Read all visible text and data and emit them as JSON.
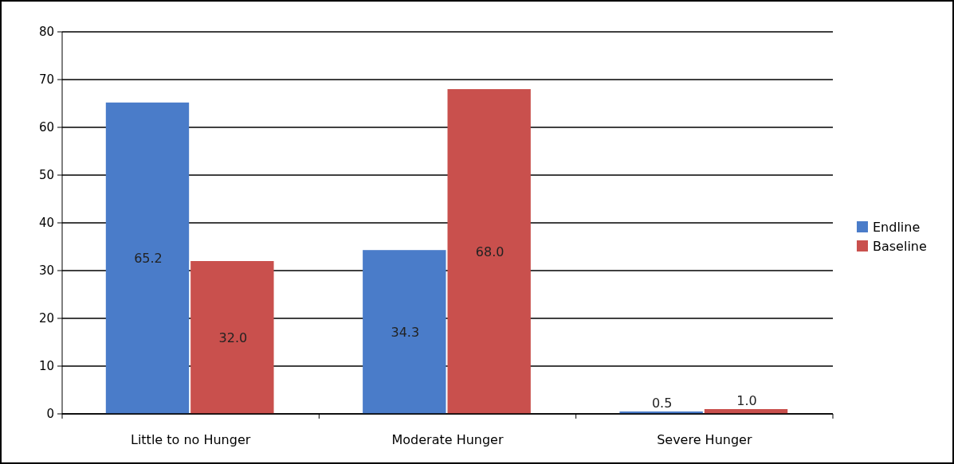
{
  "chart_data": {
    "type": "bar",
    "categories": [
      "Little to no Hunger",
      "Moderate Hunger",
      "Severe Hunger"
    ],
    "series": [
      {
        "name": "Endline",
        "color": "#4a7cc9",
        "values": [
          65.2,
          34.3,
          0.5
        ],
        "value_labels": [
          "65.2",
          "34.3",
          "0.5"
        ]
      },
      {
        "name": "Baseline",
        "color": "#c9504d",
        "values": [
          32.0,
          68.0,
          1.0
        ],
        "value_labels": [
          "32.0",
          "68.0",
          "1.0"
        ]
      }
    ],
    "ylim": [
      0,
      80
    ],
    "yticks": [
      0,
      10,
      20,
      30,
      40,
      50,
      60,
      70,
      80
    ],
    "grid": "y",
    "legend": "right"
  }
}
